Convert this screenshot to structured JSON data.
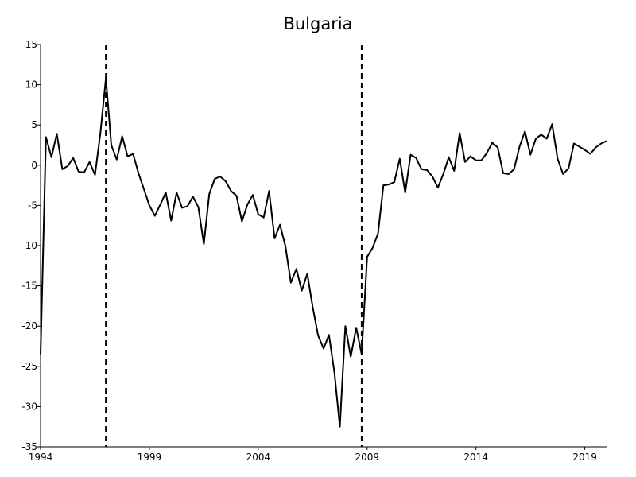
{
  "chart_data": {
    "type": "line",
    "title": "Bulgaria",
    "xlabel": "",
    "ylabel": "",
    "xlim": [
      1994.0,
      2020.0
    ],
    "ylim": [
      -35,
      15
    ],
    "grid": false,
    "x_ticks": [
      1994,
      1999,
      2004,
      2009,
      2014,
      2019
    ],
    "y_ticks": [
      15,
      10,
      5,
      0,
      -5,
      -10,
      -15,
      -20,
      -25,
      -30,
      -35
    ],
    "vertical_dashed_lines": [
      1997.0,
      2008.75
    ],
    "series": [
      {
        "color": "#000000",
        "x": [
          1994.0,
          1994.25,
          1994.5,
          1994.75,
          1995.0,
          1995.25,
          1995.5,
          1995.75,
          1996.0,
          1996.25,
          1996.5,
          1996.75,
          1997.0,
          1997.25,
          1997.5,
          1997.75,
          1998.0,
          1998.25,
          1998.5,
          1998.75,
          1999.0,
          1999.25,
          1999.5,
          1999.75,
          2000.0,
          2000.25,
          2000.5,
          2000.75,
          2001.0,
          2001.25,
          2001.5,
          2001.75,
          2002.0,
          2002.25,
          2002.5,
          2002.75,
          2003.0,
          2003.25,
          2003.5,
          2003.75,
          2004.0,
          2004.25,
          2004.5,
          2004.75,
          2005.0,
          2005.25,
          2005.5,
          2005.75,
          2006.0,
          2006.25,
          2006.5,
          2006.75,
          2007.0,
          2007.25,
          2007.5,
          2007.75,
          2008.0,
          2008.25,
          2008.5,
          2008.75,
          2009.0,
          2009.25,
          2009.5,
          2009.75,
          2010.0,
          2010.25,
          2010.5,
          2010.75,
          2011.0,
          2011.25,
          2011.5,
          2011.75,
          2012.0,
          2012.25,
          2012.5,
          2012.75,
          2013.0,
          2013.25,
          2013.5,
          2013.75,
          2014.0,
          2014.25,
          2014.5,
          2014.75,
          2015.0,
          2015.25,
          2015.5,
          2015.75,
          2016.0,
          2016.25,
          2016.5,
          2016.75,
          2017.0,
          2017.25,
          2017.5,
          2017.75,
          2018.0,
          2018.25,
          2018.5,
          2018.75,
          2019.0,
          2019.25,
          2019.5,
          2019.75,
          2020.0
        ],
        "values": [
          -23.5,
          3.5,
          1.0,
          3.9,
          -0.5,
          -0.1,
          0.9,
          -0.8,
          -0.9,
          0.4,
          -1.2,
          4.0,
          10.8,
          2.5,
          0.7,
          3.6,
          1.1,
          1.4,
          -1.0,
          -3.0,
          -5.0,
          -6.3,
          -4.9,
          -3.4,
          -6.9,
          -3.4,
          -5.3,
          -5.1,
          -3.9,
          -5.2,
          -9.8,
          -3.6,
          -1.7,
          -1.4,
          -2.0,
          -3.2,
          -3.8,
          -7.0,
          -4.9,
          -3.7,
          -6.1,
          -6.5,
          -3.2,
          -9.1,
          -7.4,
          -10.1,
          -14.6,
          -12.9,
          -15.6,
          -13.5,
          -17.6,
          -21.2,
          -22.8,
          -21.1,
          -25.8,
          -32.5,
          -20.0,
          -23.8,
          -20.2,
          -23.5,
          -11.4,
          -10.3,
          -8.5,
          -2.5,
          -2.4,
          -2.1,
          0.8,
          -3.4,
          1.3,
          0.9,
          -0.5,
          -0.6,
          -1.4,
          -2.8,
          -1.1,
          1.0,
          -0.7,
          4.0,
          0.4,
          1.1,
          0.6,
          0.6,
          1.5,
          2.8,
          2.2,
          -1.0,
          -1.1,
          -0.5,
          2.3,
          4.2,
          1.3,
          3.3,
          3.8,
          3.3,
          5.1,
          0.8,
          -1.1,
          -0.4,
          2.7,
          2.3,
          1.9,
          1.4,
          2.2,
          2.7,
          3.0
        ]
      }
    ]
  }
}
